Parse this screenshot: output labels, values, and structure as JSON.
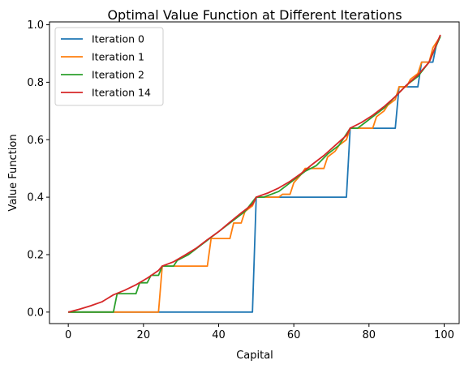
{
  "chart_data": {
    "type": "line",
    "title": "Optimal Value Function at Different Iterations",
    "xlabel": "Capital",
    "ylabel": "Value Function",
    "xlim": [
      -5,
      104
    ],
    "ylim": [
      -0.04,
      1.01
    ],
    "xticks": [
      0,
      20,
      40,
      60,
      80,
      100
    ],
    "yticks": [
      0.0,
      0.2,
      0.4,
      0.6,
      0.8,
      1.0
    ],
    "xtick_labels": [
      "0",
      "20",
      "40",
      "60",
      "80",
      "100"
    ],
    "ytick_labels": [
      "0.0",
      "0.2",
      "0.4",
      "0.6",
      "0.8",
      "1.0"
    ],
    "grid": false,
    "legend_position": "top-left",
    "series": [
      {
        "name": "Iteration 0",
        "color": "#1f77b4",
        "x": [
          0,
          49,
          50,
          74,
          75,
          87,
          88,
          93,
          94,
          97,
          98,
          99
        ],
        "y": [
          0.0,
          0.0,
          0.4,
          0.4,
          0.64,
          0.64,
          0.784,
          0.784,
          0.87,
          0.87,
          0.935,
          0.96
        ]
      },
      {
        "name": "Iteration 1",
        "color": "#ff7f0e",
        "x": [
          0,
          24,
          25,
          37,
          38,
          43,
          44,
          46,
          47,
          49,
          50,
          56,
          57,
          59,
          60,
          62,
          63,
          68,
          69,
          71,
          72,
          74,
          75,
          81,
          82,
          84,
          85,
          87,
          88,
          90,
          91,
          93,
          94,
          96,
          97,
          99
        ],
        "y": [
          0.0,
          0.0,
          0.16,
          0.16,
          0.256,
          0.256,
          0.31,
          0.31,
          0.35,
          0.37,
          0.4,
          0.4,
          0.41,
          0.41,
          0.45,
          0.48,
          0.5,
          0.5,
          0.54,
          0.56,
          0.58,
          0.6,
          0.64,
          0.64,
          0.68,
          0.7,
          0.72,
          0.74,
          0.784,
          0.784,
          0.81,
          0.83,
          0.87,
          0.87,
          0.92,
          0.96
        ]
      },
      {
        "name": "Iteration 2",
        "color": "#2ca02c",
        "x": [
          0,
          12,
          13,
          18,
          19,
          21,
          22,
          24,
          25,
          28,
          29,
          32,
          35,
          38,
          41,
          44,
          47,
          50,
          52,
          54,
          56,
          58,
          61,
          63,
          66,
          69,
          72,
          75,
          77,
          79,
          81,
          84,
          87,
          90,
          93,
          96,
          99
        ],
        "y": [
          0.0,
          0.0,
          0.064,
          0.064,
          0.102,
          0.102,
          0.128,
          0.128,
          0.16,
          0.16,
          0.18,
          0.2,
          0.23,
          0.26,
          0.29,
          0.32,
          0.35,
          0.4,
          0.4,
          0.41,
          0.42,
          0.44,
          0.47,
          0.49,
          0.51,
          0.55,
          0.58,
          0.64,
          0.64,
          0.66,
          0.68,
          0.71,
          0.75,
          0.79,
          0.82,
          0.87,
          0.96
        ]
      },
      {
        "name": "Iteration 14",
        "color": "#d62728",
        "x": [
          0,
          3,
          6,
          9,
          12,
          15,
          18,
          21,
          24,
          25,
          28,
          31,
          34,
          37,
          40,
          43,
          46,
          49,
          50,
          53,
          56,
          59,
          62,
          65,
          68,
          71,
          74,
          75,
          78,
          81,
          84,
          87,
          90,
          93,
          96,
          99
        ],
        "y": [
          0.0,
          0.01,
          0.022,
          0.036,
          0.06,
          0.076,
          0.095,
          0.118,
          0.145,
          0.16,
          0.175,
          0.198,
          0.222,
          0.252,
          0.28,
          0.313,
          0.345,
          0.375,
          0.4,
          0.414,
          0.432,
          0.455,
          0.483,
          0.515,
          0.545,
          0.58,
          0.615,
          0.64,
          0.66,
          0.685,
          0.715,
          0.75,
          0.79,
          0.825,
          0.87,
          0.965
        ]
      }
    ]
  }
}
